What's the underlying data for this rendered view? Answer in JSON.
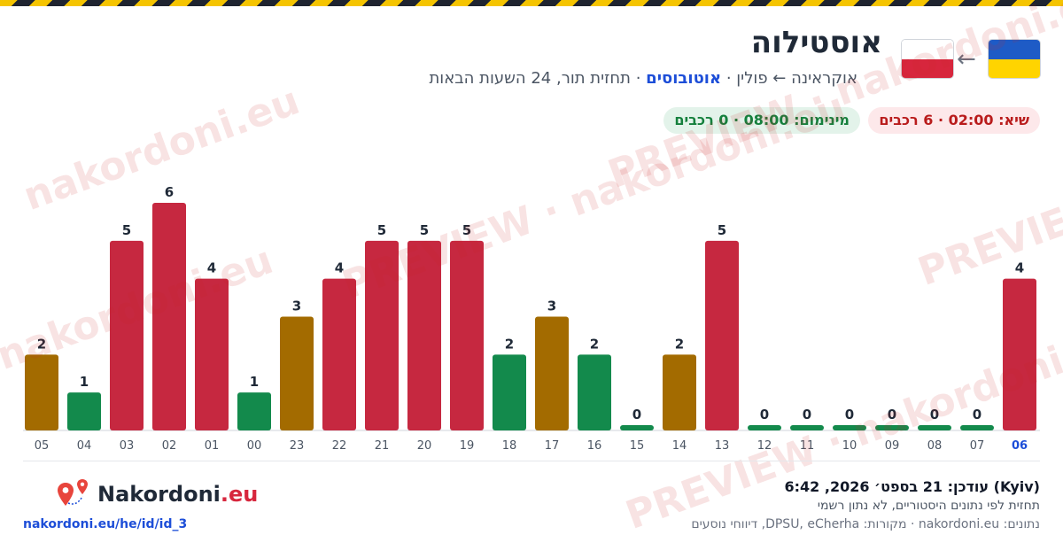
{
  "header": {
    "title": "אוסטילוה",
    "route": "אוקראינה ← פולין",
    "mode": "אוטובוסים",
    "forecast_desc": "תחזית תור, 24 השעות הבאות",
    "separator": " · "
  },
  "flags": {
    "origin": "Ukraine",
    "destination": "Poland",
    "arrow": "←"
  },
  "pills": {
    "peak": "שיא: 02:00 · 6 רכבים",
    "minimum": "מינימום: 08:00 · 0 רכבים"
  },
  "colors": {
    "high": "#c62840",
    "medium": "#a36b00",
    "low": "#138a4c",
    "highlight_label": "#1d4ed8"
  },
  "chart_data": {
    "type": "bar",
    "categories": [
      "05",
      "04",
      "03",
      "02",
      "01",
      "00",
      "23",
      "22",
      "21",
      "20",
      "19",
      "18",
      "17",
      "16",
      "15",
      "14",
      "13",
      "12",
      "11",
      "10",
      "09",
      "08",
      "07",
      "06"
    ],
    "values": [
      2,
      1,
      5,
      6,
      4,
      1,
      3,
      4,
      5,
      5,
      5,
      2,
      3,
      2,
      0,
      2,
      5,
      0,
      0,
      0,
      0,
      0,
      0,
      4
    ],
    "levels": [
      "medium",
      "low",
      "high",
      "high",
      "high",
      "low",
      "medium",
      "high",
      "high",
      "high",
      "high",
      "low",
      "medium",
      "low",
      "low",
      "medium",
      "high",
      "low",
      "low",
      "low",
      "low",
      "low",
      "low",
      "high"
    ],
    "highlight_category": "06",
    "title": "",
    "xlabel": "",
    "ylabel": "",
    "ylim": [
      0,
      6
    ]
  },
  "footer": {
    "updated": "עודכן: 21 בספט׳ 2026, 6:42 (Kyiv)",
    "note": "תחזית לפי נתונים היסטוריים, לא נתון רשמי",
    "sources": "נתונים: nakordoni.eu · מקורות: DPSU, eCherha, דיווחי נוסעים",
    "logo_name": "Nakordoni",
    "logo_tld": ".eu",
    "url": "nakordoni.eu/he/id/id_3"
  },
  "watermarks": [
    "nakordoni.eu",
    "PREVIEW · nakordoni.eu",
    "PREVIEW · nakordoni.eu",
    "PREVIEW",
    "nakordoni.eu",
    "PREVIEW · nakordoni.eu"
  ]
}
